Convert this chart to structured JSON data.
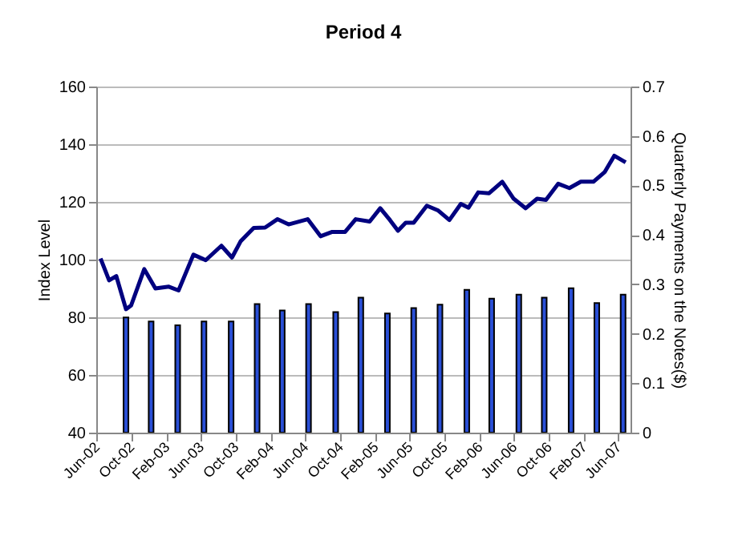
{
  "chart_data": {
    "type": "line",
    "title": "Period 4",
    "ylabel": "Index Level",
    "y2label": "Quarterly Payments on the Notes($)",
    "xlim": [
      "2002-06-01",
      "2007-07-15"
    ],
    "xticks": [
      {
        "value": "2002-06-01",
        "label": "Jun-02"
      },
      {
        "value": "2002-10-01",
        "label": "Oct-02"
      },
      {
        "value": "2003-02-01",
        "label": "Feb-03"
      },
      {
        "value": "2003-06-01",
        "label": "Jun-03"
      },
      {
        "value": "2003-10-01",
        "label": "Oct-03"
      },
      {
        "value": "2004-02-01",
        "label": "Feb-04"
      },
      {
        "value": "2004-06-01",
        "label": "Jun-04"
      },
      {
        "value": "2004-10-01",
        "label": "Oct-04"
      },
      {
        "value": "2005-02-01",
        "label": "Feb-05"
      },
      {
        "value": "2005-06-01",
        "label": "Jun-05"
      },
      {
        "value": "2005-10-01",
        "label": "Oct-05"
      },
      {
        "value": "2006-02-01",
        "label": "Feb-06"
      },
      {
        "value": "2006-06-01",
        "label": "Jun-06"
      },
      {
        "value": "2006-10-01",
        "label": "Oct-06"
      },
      {
        "value": "2007-02-01",
        "label": "Feb-07"
      },
      {
        "value": "2007-06-01",
        "label": "Jun-07"
      }
    ],
    "ylim": [
      40,
      160
    ],
    "yticks": [
      40,
      60,
      80,
      100,
      120,
      140,
      160
    ],
    "y2lim": [
      0,
      0.7
    ],
    "y2ticks": [
      0,
      0.1,
      0.2,
      0.3,
      0.4,
      0.5,
      0.6,
      0.7
    ],
    "grid": "y",
    "series": [
      {
        "color": "#00007f",
        "line_style": "solid",
        "marker": "none",
        "x": [
          "2002-06-16",
          "2002-07-16",
          "2002-08-10",
          "2002-09-13",
          "2002-10-01",
          "2002-11-16",
          "2002-12-25",
          "2003-02-10",
          "2003-03-16",
          "2003-05-07",
          "2003-06-19",
          "2003-08-13",
          "2003-09-19",
          "2003-10-19",
          "2003-12-04",
          "2004-01-13",
          "2004-02-25",
          "2004-04-04",
          "2004-06-10",
          "2004-07-25",
          "2004-09-04",
          "2004-10-19",
          "2004-11-25",
          "2005-01-13",
          "2005-02-19",
          "2005-03-25",
          "2005-04-22",
          "2005-05-19",
          "2005-06-16",
          "2005-08-01",
          "2005-09-10",
          "2005-10-19",
          "2005-11-28",
          "2005-12-25",
          "2006-01-28",
          "2006-03-07",
          "2006-04-22",
          "2006-06-01",
          "2006-07-13",
          "2006-08-22",
          "2006-09-22",
          "2006-11-04",
          "2006-12-13",
          "2007-01-22",
          "2007-03-07",
          "2007-04-16",
          "2007-05-19",
          "2007-06-28"
        ],
        "values": [
          100.4,
          92.8,
          94.3,
          82.8,
          84.1,
          96.7,
          90,
          90.6,
          89.3,
          101.7,
          99.8,
          104.8,
          100.7,
          106.3,
          111,
          111.1,
          114,
          112.2,
          114,
          108.1,
          109.6,
          109.6,
          114,
          113.2,
          117.8,
          113.7,
          110,
          112.8,
          112.8,
          118.7,
          117,
          113.7,
          119.3,
          118,
          123.3,
          123,
          127,
          121.1,
          117.8,
          121.1,
          120.7,
          126.3,
          124.8,
          127,
          127,
          130.4,
          136,
          133.7
        ]
      },
      {
        "type": "bar",
        "axis": "y2",
        "color": "#2a4fd6",
        "x": [
          "2002-09-13",
          "2002-12-10",
          "2003-03-13",
          "2003-06-13",
          "2003-09-16",
          "2003-12-16",
          "2004-03-13",
          "2004-06-13",
          "2004-09-16",
          "2004-12-13",
          "2005-03-16",
          "2005-06-16",
          "2005-09-16",
          "2005-12-19",
          "2006-03-16",
          "2006-06-19",
          "2006-09-16",
          "2006-12-19",
          "2007-03-19",
          "2007-06-19"
        ],
        "values": [
          0.233,
          0.225,
          0.217,
          0.225,
          0.225,
          0.26,
          0.247,
          0.26,
          0.244,
          0.273,
          0.241,
          0.252,
          0.259,
          0.289,
          0.271,
          0.279,
          0.273,
          0.292,
          0.262,
          0.279
        ]
      }
    ]
  }
}
